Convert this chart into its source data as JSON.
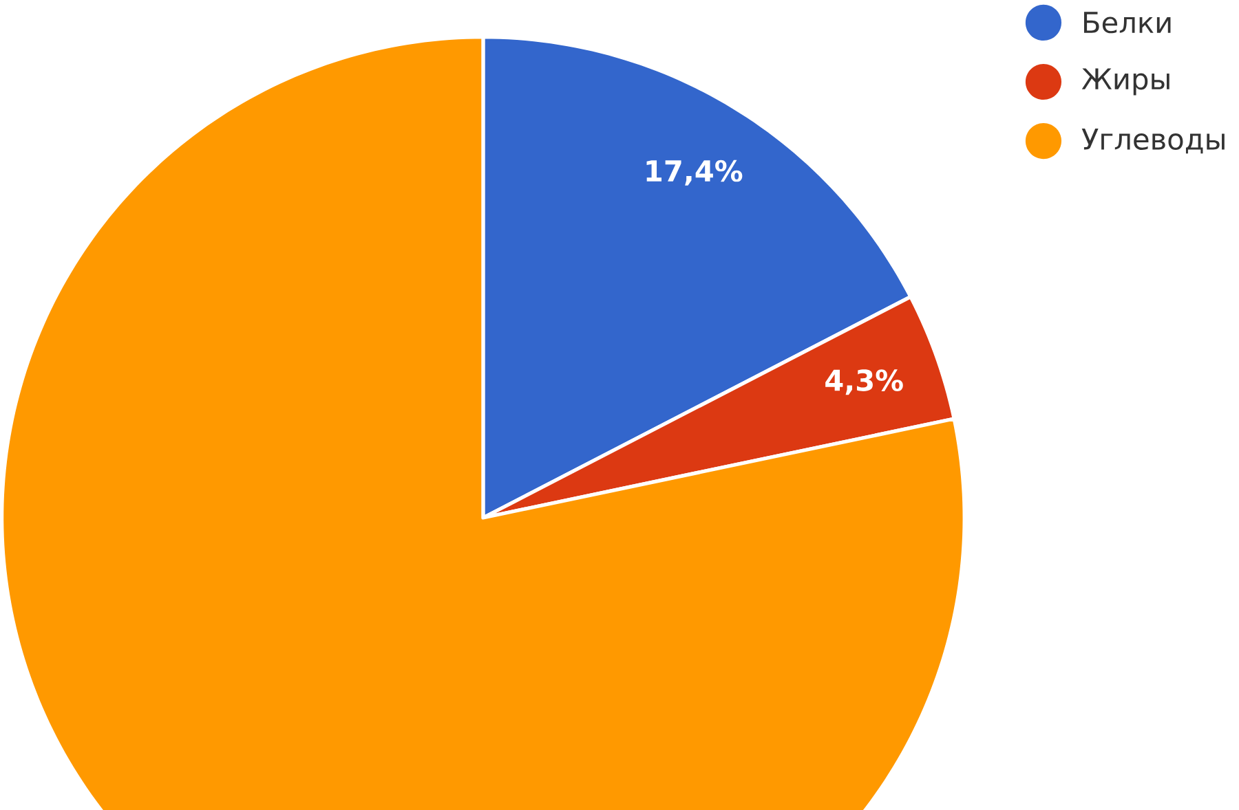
{
  "chart_data": {
    "type": "pie",
    "categories": [
      "Белки",
      "Жиры",
      "Углеводы"
    ],
    "values": [
      17.4,
      4.3,
      78.3
    ],
    "colors": [
      "#3366cc",
      "#dc3912",
      "#ff9900"
    ],
    "value_labels": [
      "17,4%",
      "4,3%",
      null
    ],
    "legend": "top right"
  }
}
